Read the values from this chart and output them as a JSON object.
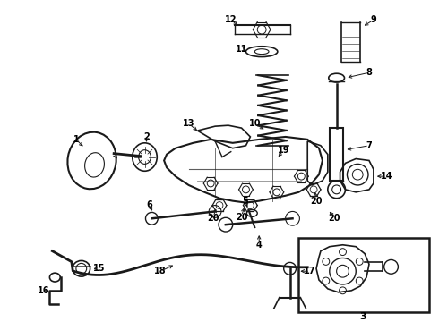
{
  "bg_color": "#ffffff",
  "fig_width": 4.9,
  "fig_height": 3.6,
  "dpi": 100,
  "line_color": "#1a1a1a",
  "label_fontsize": 7.0
}
